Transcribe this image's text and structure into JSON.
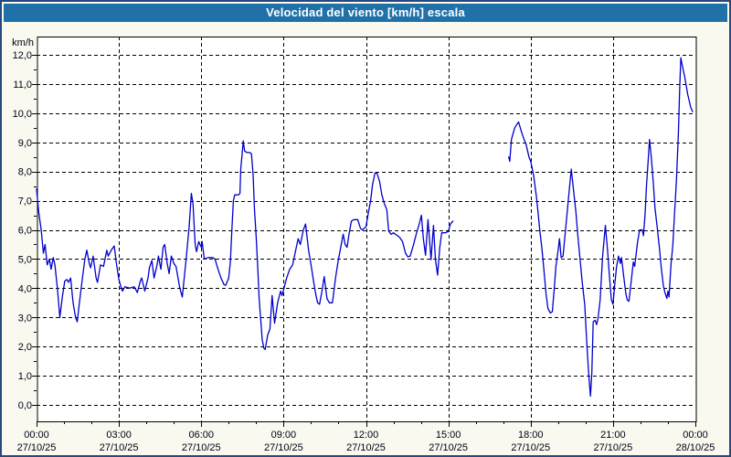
{
  "window": {
    "title": "Velocidad del viento [km/h] escala"
  },
  "colors": {
    "frame": "#27497f",
    "titlebar_bg": "#2171a9",
    "titlebar_text": "#ffffff",
    "page_bg": "#f9f9ef",
    "plot_bg": "#ffffff",
    "grid": "#000000",
    "axis_label": "#000014",
    "line": "#0000cc"
  },
  "chart_data": {
    "type": "line",
    "title": "Velocidad del viento [km/h] escala",
    "y_unit_label": "km/h",
    "ylim": [
      0,
      12
    ],
    "xlim_hours": [
      0,
      24
    ],
    "grid": {
      "style": "dashed",
      "y_step": 1,
      "x_step_hours": 3,
      "y_minor_tick": 0.5,
      "x_minor_tick_hours": 1
    },
    "legend": "none",
    "line_color": "#0000cc",
    "y_ticks": [
      {
        "value": 12,
        "label": "12,0"
      },
      {
        "value": 11,
        "label": "11,0"
      },
      {
        "value": 10,
        "label": "10,0"
      },
      {
        "value": 9,
        "label": "9,0"
      },
      {
        "value": 8,
        "label": "8,0"
      },
      {
        "value": 7,
        "label": "7,0"
      },
      {
        "value": 6,
        "label": "6,0"
      },
      {
        "value": 5,
        "label": "5,0"
      },
      {
        "value": 4,
        "label": "4,0"
      },
      {
        "value": 3,
        "label": "3,0"
      },
      {
        "value": 2,
        "label": "2,0"
      },
      {
        "value": 1,
        "label": "1,0"
      },
      {
        "value": 0,
        "label": "0,0"
      }
    ],
    "x_ticks": [
      {
        "hour": 0,
        "time": "00:00",
        "date": "27/10/25"
      },
      {
        "hour": 3,
        "time": "03:00",
        "date": "27/10/25"
      },
      {
        "hour": 6,
        "time": "06:00",
        "date": "27/10/25"
      },
      {
        "hour": 9,
        "time": "09:00",
        "date": "27/10/25"
      },
      {
        "hour": 12,
        "time": "12:00",
        "date": "27/10/25"
      },
      {
        "hour": 15,
        "time": "15:00",
        "date": "27/10/25"
      },
      {
        "hour": 18,
        "time": "18:00",
        "date": "27/10/25"
      },
      {
        "hour": 21,
        "time": "21:00",
        "date": "27/10/25"
      },
      {
        "hour": 24,
        "time": "00:00",
        "date": "28/10/25"
      }
    ],
    "segments": [
      {
        "name": "morning-afternoon",
        "points": [
          [
            0.0,
            7.4
          ],
          [
            0.08,
            6.6
          ],
          [
            0.17,
            6.0
          ],
          [
            0.25,
            5.2
          ],
          [
            0.31,
            5.5
          ],
          [
            0.39,
            4.8
          ],
          [
            0.47,
            5.0
          ],
          [
            0.53,
            4.65
          ],
          [
            0.61,
            5.05
          ],
          [
            0.67,
            4.8
          ],
          [
            0.76,
            4.0
          ],
          [
            0.85,
            3.0
          ],
          [
            0.94,
            3.7
          ],
          [
            1.03,
            4.25
          ],
          [
            1.11,
            4.3
          ],
          [
            1.17,
            4.2
          ],
          [
            1.24,
            4.35
          ],
          [
            1.33,
            3.5
          ],
          [
            1.42,
            3.0
          ],
          [
            1.48,
            2.85
          ],
          [
            1.56,
            3.5
          ],
          [
            1.67,
            4.35
          ],
          [
            1.76,
            5.0
          ],
          [
            1.83,
            5.3
          ],
          [
            1.92,
            4.85
          ],
          [
            1.97,
            4.7
          ],
          [
            2.06,
            5.1
          ],
          [
            2.17,
            4.35
          ],
          [
            2.22,
            4.2
          ],
          [
            2.33,
            4.8
          ],
          [
            2.44,
            4.75
          ],
          [
            2.56,
            5.3
          ],
          [
            2.61,
            5.1
          ],
          [
            2.72,
            5.3
          ],
          [
            2.83,
            5.45
          ],
          [
            2.91,
            4.85
          ],
          [
            3.0,
            4.3
          ],
          [
            3.09,
            4.0
          ],
          [
            3.13,
            3.9
          ],
          [
            3.22,
            4.05
          ],
          [
            3.39,
            4.0
          ],
          [
            3.56,
            4.05
          ],
          [
            3.67,
            3.85
          ],
          [
            3.78,
            4.25
          ],
          [
            3.83,
            4.35
          ],
          [
            3.94,
            3.9
          ],
          [
            4.06,
            4.35
          ],
          [
            4.11,
            4.7
          ],
          [
            4.2,
            4.95
          ],
          [
            4.28,
            4.35
          ],
          [
            4.39,
            4.8
          ],
          [
            4.44,
            5.1
          ],
          [
            4.53,
            4.65
          ],
          [
            4.61,
            5.4
          ],
          [
            4.67,
            5.5
          ],
          [
            4.76,
            4.85
          ],
          [
            4.83,
            4.5
          ],
          [
            4.91,
            5.1
          ],
          [
            5.0,
            4.85
          ],
          [
            5.08,
            4.75
          ],
          [
            5.22,
            4.0
          ],
          [
            5.31,
            3.7
          ],
          [
            5.44,
            4.9
          ],
          [
            5.56,
            6.1
          ],
          [
            5.64,
            7.25
          ],
          [
            5.7,
            6.9
          ],
          [
            5.78,
            5.5
          ],
          [
            5.83,
            5.25
          ],
          [
            5.91,
            5.6
          ],
          [
            6.0,
            5.4
          ],
          [
            6.03,
            5.6
          ],
          [
            6.11,
            5.0
          ],
          [
            6.25,
            5.05
          ],
          [
            6.42,
            5.05
          ],
          [
            6.5,
            5.0
          ],
          [
            6.61,
            4.65
          ],
          [
            6.72,
            4.35
          ],
          [
            6.83,
            4.12
          ],
          [
            6.89,
            4.1
          ],
          [
            7.0,
            4.35
          ],
          [
            7.06,
            4.9
          ],
          [
            7.11,
            5.9
          ],
          [
            7.17,
            7.0
          ],
          [
            7.22,
            7.2
          ],
          [
            7.36,
            7.2
          ],
          [
            7.41,
            7.25
          ],
          [
            7.44,
            8.1
          ],
          [
            7.49,
            8.6
          ],
          [
            7.53,
            9.05
          ],
          [
            7.58,
            8.7
          ],
          [
            7.67,
            8.65
          ],
          [
            7.78,
            8.65
          ],
          [
            7.83,
            8.6
          ],
          [
            7.89,
            7.9
          ],
          [
            7.94,
            6.7
          ],
          [
            8.0,
            5.8
          ],
          [
            8.06,
            4.7
          ],
          [
            8.11,
            3.65
          ],
          [
            8.17,
            2.9
          ],
          [
            8.22,
            2.25
          ],
          [
            8.28,
            1.95
          ],
          [
            8.33,
            1.9
          ],
          [
            8.42,
            2.4
          ],
          [
            8.5,
            2.6
          ],
          [
            8.58,
            3.75
          ],
          [
            8.67,
            2.8
          ],
          [
            8.78,
            3.5
          ],
          [
            8.89,
            3.9
          ],
          [
            8.94,
            3.75
          ],
          [
            9.0,
            3.95
          ],
          [
            9.11,
            4.35
          ],
          [
            9.22,
            4.65
          ],
          [
            9.33,
            4.8
          ],
          [
            9.44,
            5.3
          ],
          [
            9.53,
            5.7
          ],
          [
            9.61,
            5.5
          ],
          [
            9.72,
            6.0
          ],
          [
            9.8,
            6.2
          ],
          [
            9.91,
            5.3
          ],
          [
            10.0,
            4.8
          ],
          [
            10.09,
            4.25
          ],
          [
            10.17,
            3.8
          ],
          [
            10.24,
            3.5
          ],
          [
            10.31,
            3.45
          ],
          [
            10.39,
            3.85
          ],
          [
            10.48,
            4.4
          ],
          [
            10.58,
            3.65
          ],
          [
            10.67,
            3.5
          ],
          [
            10.78,
            3.5
          ],
          [
            10.89,
            4.35
          ],
          [
            10.98,
            4.9
          ],
          [
            11.06,
            5.3
          ],
          [
            11.17,
            5.85
          ],
          [
            11.24,
            5.5
          ],
          [
            11.31,
            5.4
          ],
          [
            11.39,
            5.9
          ],
          [
            11.47,
            6.3
          ],
          [
            11.56,
            6.35
          ],
          [
            11.7,
            6.35
          ],
          [
            11.8,
            6.05
          ],
          [
            11.87,
            6.0
          ],
          [
            12.0,
            6.1
          ],
          [
            12.09,
            6.6
          ],
          [
            12.17,
            7.0
          ],
          [
            12.24,
            7.55
          ],
          [
            12.33,
            7.95
          ],
          [
            12.4,
            7.95
          ],
          [
            12.5,
            7.65
          ],
          [
            12.58,
            7.2
          ],
          [
            12.67,
            6.9
          ],
          [
            12.76,
            6.7
          ],
          [
            12.83,
            5.95
          ],
          [
            12.92,
            5.85
          ],
          [
            13.0,
            5.9
          ],
          [
            13.22,
            5.75
          ],
          [
            13.33,
            5.6
          ],
          [
            13.44,
            5.2
          ],
          [
            13.52,
            5.08
          ],
          [
            13.61,
            5.1
          ],
          [
            13.72,
            5.45
          ],
          [
            13.83,
            5.85
          ],
          [
            13.94,
            6.2
          ],
          [
            14.02,
            6.5
          ],
          [
            14.09,
            5.7
          ],
          [
            14.17,
            5.13
          ],
          [
            14.26,
            6.35
          ],
          [
            14.37,
            4.98
          ],
          [
            14.46,
            6.15
          ],
          [
            14.53,
            5.0
          ],
          [
            14.61,
            4.45
          ],
          [
            14.69,
            5.4
          ],
          [
            14.76,
            5.9
          ],
          [
            14.9,
            5.9
          ],
          [
            15.0,
            5.95
          ],
          [
            15.08,
            6.2
          ],
          [
            15.17,
            6.3
          ]
        ]
      },
      {
        "name": "evening-night",
        "points": [
          [
            17.2,
            8.5
          ],
          [
            17.24,
            8.35
          ],
          [
            17.3,
            9.1
          ],
          [
            17.42,
            9.5
          ],
          [
            17.56,
            9.7
          ],
          [
            17.67,
            9.35
          ],
          [
            17.78,
            9.05
          ],
          [
            17.83,
            8.95
          ],
          [
            17.94,
            8.5
          ],
          [
            18.0,
            8.35
          ],
          [
            18.11,
            7.85
          ],
          [
            18.22,
            7.05
          ],
          [
            18.33,
            6.0
          ],
          [
            18.41,
            5.35
          ],
          [
            18.48,
            4.65
          ],
          [
            18.56,
            3.8
          ],
          [
            18.63,
            3.3
          ],
          [
            18.72,
            3.15
          ],
          [
            18.79,
            3.2
          ],
          [
            18.86,
            4.0
          ],
          [
            18.92,
            4.75
          ],
          [
            19.0,
            5.3
          ],
          [
            19.05,
            5.7
          ],
          [
            19.11,
            5.05
          ],
          [
            19.18,
            5.1
          ],
          [
            19.26,
            5.9
          ],
          [
            19.34,
            6.7
          ],
          [
            19.41,
            7.4
          ],
          [
            19.48,
            8.08
          ],
          [
            19.57,
            7.3
          ],
          [
            19.65,
            6.6
          ],
          [
            19.72,
            5.8
          ],
          [
            19.8,
            5.0
          ],
          [
            19.88,
            4.2
          ],
          [
            19.97,
            3.45
          ],
          [
            20.06,
            1.9
          ],
          [
            20.12,
            1.0
          ],
          [
            20.18,
            0.3
          ],
          [
            20.23,
            1.1
          ],
          [
            20.28,
            2.85
          ],
          [
            20.35,
            2.9
          ],
          [
            20.4,
            2.75
          ],
          [
            20.45,
            2.95
          ],
          [
            20.53,
            3.6
          ],
          [
            20.62,
            5.1
          ],
          [
            20.72,
            6.15
          ],
          [
            20.8,
            5.3
          ],
          [
            20.87,
            4.4
          ],
          [
            20.94,
            3.6
          ],
          [
            21.0,
            3.45
          ],
          [
            21.06,
            4.1
          ],
          [
            21.13,
            4.75
          ],
          [
            21.2,
            5.1
          ],
          [
            21.27,
            4.85
          ],
          [
            21.31,
            5.05
          ],
          [
            21.39,
            4.4
          ],
          [
            21.47,
            3.8
          ],
          [
            21.52,
            3.6
          ],
          [
            21.58,
            3.55
          ],
          [
            21.67,
            4.3
          ],
          [
            21.74,
            4.9
          ],
          [
            21.79,
            4.75
          ],
          [
            21.89,
            5.55
          ],
          [
            21.97,
            6.0
          ],
          [
            22.07,
            6.0
          ],
          [
            22.11,
            5.8
          ],
          [
            22.17,
            6.55
          ],
          [
            22.22,
            7.5
          ],
          [
            22.28,
            8.35
          ],
          [
            22.33,
            9.1
          ],
          [
            22.4,
            8.45
          ],
          [
            22.47,
            7.6
          ],
          [
            22.53,
            6.75
          ],
          [
            22.61,
            6.1
          ],
          [
            22.69,
            5.4
          ],
          [
            22.76,
            4.7
          ],
          [
            22.83,
            4.1
          ],
          [
            22.89,
            3.85
          ],
          [
            22.96,
            3.65
          ],
          [
            23.0,
            3.9
          ],
          [
            23.04,
            3.7
          ],
          [
            23.11,
            4.8
          ],
          [
            23.18,
            5.5
          ],
          [
            23.24,
            6.55
          ],
          [
            23.31,
            7.7
          ],
          [
            23.38,
            9.3
          ],
          [
            23.43,
            10.9
          ],
          [
            23.47,
            11.9
          ],
          [
            23.52,
            11.65
          ],
          [
            23.61,
            11.25
          ],
          [
            23.72,
            10.65
          ],
          [
            23.83,
            10.2
          ],
          [
            23.9,
            10.05
          ]
        ]
      }
    ]
  }
}
